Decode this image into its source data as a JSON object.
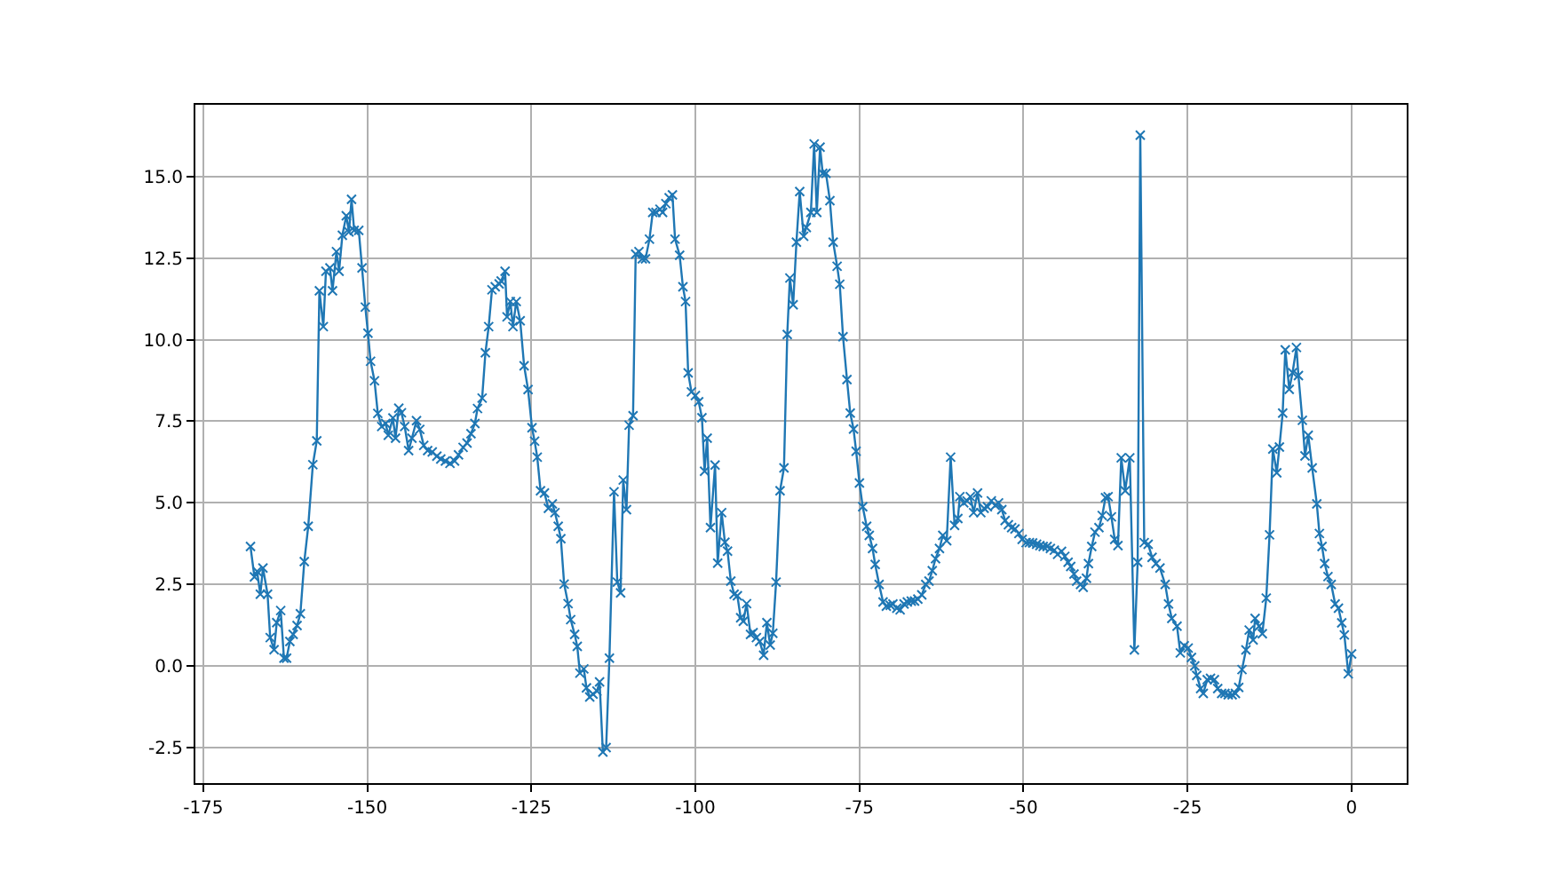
{
  "chart_data": {
    "type": "line",
    "x": [
      -167.8,
      -167.2,
      -166.8,
      -166.3,
      -165.9,
      -165.2,
      -164.8,
      -164.2,
      -163.8,
      -163.2,
      -162.7,
      -162.3,
      -161.8,
      -161.3,
      -160.7,
      -160.2,
      -159.6,
      -159.0,
      -158.3,
      -157.7,
      -157.3,
      -156.7,
      -156.3,
      -155.7,
      -155.3,
      -154.7,
      -154.3,
      -153.8,
      -153.2,
      -152.8,
      -152.4,
      -152.0,
      -151.3,
      -150.8,
      -150.3,
      -149.9,
      -149.5,
      -148.9,
      -148.4,
      -147.8,
      -147.2,
      -146.8,
      -146.1,
      -145.7,
      -145.2,
      -144.8,
      -144.3,
      -143.7,
      -143.2,
      -142.5,
      -142.0,
      -141.4,
      -140.8,
      -140.1,
      -139.4,
      -138.8,
      -138.1,
      -137.4,
      -136.7,
      -136.1,
      -135.4,
      -134.8,
      -134.2,
      -133.6,
      -133.2,
      -132.5,
      -132.0,
      -131.5,
      -131.0,
      -130.5,
      -129.9,
      -129.6,
      -129.0,
      -128.7,
      -128.2,
      -127.8,
      -127.3,
      -126.7,
      -126.1,
      -125.5,
      -124.9,
      -124.5,
      -124.1,
      -123.6,
      -123.0,
      -122.4,
      -121.8,
      -121.4,
      -120.9,
      -120.5,
      -120.0,
      -119.4,
      -119.0,
      -118.4,
      -118.0,
      -117.6,
      -117.0,
      -116.6,
      -116.1,
      -115.6,
      -115.0,
      -114.6,
      -114.1,
      -113.6,
      -113.1,
      -112.4,
      -111.9,
      -111.4,
      -111.0,
      -110.5,
      -110.1,
      -109.5,
      -109.1,
      -108.6,
      -108.1,
      -107.6,
      -107.0,
      -106.5,
      -106.0,
      -105.4,
      -105.0,
      -104.5,
      -104.0,
      -103.5,
      -103.1,
      -102.4,
      -101.9,
      -101.5,
      -101.1,
      -100.6,
      -100.0,
      -99.5,
      -99.0,
      -98.6,
      -98.2,
      -97.7,
      -97.0,
      -96.6,
      -96.0,
      -95.5,
      -95.1,
      -94.6,
      -94.1,
      -93.6,
      -93.1,
      -92.7,
      -92.2,
      -91.6,
      -91.2,
      -90.7,
      -90.2,
      -89.6,
      -89.1,
      -88.6,
      -88.2,
      -87.7,
      -87.1,
      -86.5,
      -86.0,
      -85.6,
      -85.1,
      -84.6,
      -84.1,
      -83.5,
      -83.1,
      -82.4,
      -81.9,
      -81.5,
      -81.0,
      -80.6,
      -80.1,
      -79.5,
      -79.0,
      -78.4,
      -78.0,
      -77.5,
      -76.9,
      -76.4,
      -75.9,
      -75.5,
      -75.0,
      -74.5,
      -73.9,
      -73.5,
      -73.0,
      -72.6,
      -72.0,
      -71.4,
      -70.9,
      -70.3,
      -69.9,
      -69.3,
      -68.8,
      -68.2,
      -67.7,
      -67.1,
      -66.6,
      -66.1,
      -65.5,
      -64.9,
      -64.4,
      -63.9,
      -63.4,
      -62.8,
      -62.3,
      -61.7,
      -61.1,
      -60.5,
      -60.0,
      -59.7,
      -59.1,
      -58.6,
      -58.1,
      -57.6,
      -57.0,
      -56.5,
      -56.0,
      -55.5,
      -54.9,
      -54.3,
      -53.8,
      -53.3,
      -52.8,
      -52.3,
      -51.8,
      -51.3,
      -50.7,
      -50.2,
      -49.6,
      -49.1,
      -48.6,
      -48.0,
      -47.5,
      -47.0,
      -46.4,
      -45.9,
      -45.3,
      -44.8,
      -44.2,
      -43.7,
      -43.2,
      -42.8,
      -42.3,
      -41.9,
      -41.3,
      -40.9,
      -40.4,
      -40.1,
      -39.6,
      -39.1,
      -38.5,
      -38.0,
      -37.5,
      -37.1,
      -36.6,
      -36.1,
      -35.6,
      -35.1,
      -34.5,
      -33.8,
      -33.1,
      -32.6,
      -32.2,
      -31.6,
      -31.0,
      -30.4,
      -29.8,
      -29.2,
      -28.4,
      -27.9,
      -27.4,
      -26.6,
      -26.1,
      -25.5,
      -24.9,
      -24.4,
      -23.9,
      -23.6,
      -23.0,
      -22.6,
      -22.0,
      -21.5,
      -20.9,
      -20.4,
      -19.8,
      -19.3,
      -18.8,
      -18.2,
      -17.7,
      -17.2,
      -16.7,
      -16.1,
      -15.6,
      -15.0,
      -14.7,
      -14.1,
      -13.6,
      -13.0,
      -12.5,
      -12.0,
      -11.4,
      -11.0,
      -10.5,
      -10.1,
      -9.5,
      -9.0,
      -8.4,
      -8.1,
      -7.5,
      -7.1,
      -6.6,
      -6.0,
      -5.3,
      -4.9,
      -4.5,
      -4.1,
      -3.6,
      -3.1,
      -2.5,
      -2.0,
      -1.5,
      -1.1,
      -0.5,
      0.0
    ],
    "series": [
      {
        "color": "#1f77b4",
        "values": [
          3.66,
          2.73,
          2.9,
          2.2,
          3.0,
          2.2,
          0.87,
          0.5,
          1.33,
          1.7,
          0.24,
          0.24,
          0.75,
          0.97,
          1.24,
          1.6,
          3.2,
          4.28,
          6.17,
          6.9,
          11.5,
          10.4,
          12.1,
          12.2,
          11.5,
          12.7,
          12.1,
          13.2,
          13.8,
          13.3,
          14.3,
          13.35,
          13.35,
          12.2,
          11.0,
          10.2,
          9.34,
          8.74,
          7.74,
          7.34,
          7.43,
          7.07,
          7.6,
          6.98,
          7.9,
          7.76,
          7.34,
          6.6,
          6.98,
          7.52,
          7.25,
          6.76,
          6.6,
          6.56,
          6.43,
          6.34,
          6.28,
          6.21,
          6.28,
          6.47,
          6.7,
          6.83,
          7.12,
          7.43,
          7.89,
          8.21,
          9.6,
          10.4,
          11.53,
          11.62,
          11.71,
          11.8,
          12.1,
          10.7,
          11.17,
          10.4,
          11.17,
          10.58,
          9.2,
          8.47,
          7.3,
          6.89,
          6.4,
          5.37,
          5.3,
          4.83,
          4.97,
          4.7,
          4.28,
          3.9,
          2.51,
          1.91,
          1.42,
          0.97,
          0.6,
          -0.22,
          -0.09,
          -0.67,
          -0.95,
          -0.86,
          -0.77,
          -0.49,
          -2.64,
          -2.5,
          0.24,
          5.34,
          2.57,
          2.24,
          5.7,
          4.79,
          7.38,
          7.67,
          12.62,
          12.7,
          12.48,
          12.48,
          13.08,
          13.9,
          13.9,
          14.0,
          13.9,
          14.17,
          14.35,
          14.44,
          13.08,
          12.59,
          11.62,
          11.17,
          8.98,
          8.4,
          8.29,
          8.1,
          7.61,
          5.97,
          6.98,
          4.24,
          6.16,
          3.15,
          4.7,
          3.79,
          3.52,
          2.6,
          2.2,
          2.15,
          1.48,
          1.37,
          1.91,
          0.97,
          1.02,
          0.87,
          0.75,
          0.33,
          1.33,
          0.64,
          1.0,
          2.57,
          5.37,
          6.07,
          10.16,
          11.89,
          11.07,
          12.99,
          14.54,
          13.17,
          13.44,
          13.9,
          16.0,
          13.9,
          15.9,
          15.1,
          15.1,
          14.26,
          12.99,
          12.25,
          11.7,
          10.09,
          8.78,
          7.75,
          7.26,
          6.58,
          5.61,
          4.88,
          4.28,
          4.0,
          3.6,
          3.11,
          2.5,
          1.96,
          1.83,
          1.86,
          1.9,
          1.77,
          1.72,
          1.9,
          1.96,
          1.99,
          1.99,
          2.05,
          2.18,
          2.5,
          2.6,
          2.92,
          3.29,
          3.6,
          4.0,
          3.84,
          6.4,
          4.31,
          4.52,
          5.19,
          5.0,
          5.06,
          5.19,
          4.7,
          5.3,
          4.7,
          4.83,
          4.88,
          5.06,
          4.92,
          5.0,
          4.79,
          4.46,
          4.33,
          4.24,
          4.2,
          4.06,
          3.88,
          3.78,
          3.78,
          3.77,
          3.73,
          3.69,
          3.66,
          3.66,
          3.6,
          3.55,
          3.42,
          3.51,
          3.36,
          3.18,
          3.05,
          2.82,
          2.6,
          2.5,
          2.41,
          2.69,
          3.14,
          3.66,
          4.1,
          4.24,
          4.61,
          5.16,
          5.19,
          4.57,
          3.88,
          3.69,
          6.38,
          5.37,
          6.38,
          0.49,
          3.18,
          16.27,
          3.78,
          3.73,
          3.33,
          3.14,
          3.0,
          2.5,
          1.9,
          1.46,
          1.22,
          0.4,
          0.62,
          0.55,
          0.26,
          0.0,
          -0.29,
          -0.69,
          -0.84,
          -0.42,
          -0.38,
          -0.42,
          -0.69,
          -0.84,
          -0.84,
          -0.88,
          -0.88,
          -0.84,
          -0.66,
          -0.11,
          0.49,
          1.1,
          0.8,
          1.46,
          1.22,
          0.99,
          2.08,
          4.02,
          6.65,
          5.92,
          6.71,
          7.75,
          9.69,
          8.48,
          8.99,
          9.76,
          8.9,
          7.53,
          6.44,
          7.07,
          6.07,
          4.97,
          4.06,
          3.66,
          3.14,
          2.74,
          2.5,
          1.9,
          1.77,
          1.32,
          0.95,
          -0.24,
          0.37
        ]
      }
    ],
    "xlim": [
      -176.2,
      8.4
    ],
    "ylim": [
      -3.59,
      17.2
    ],
    "xticks": [
      -175,
      -150,
      -125,
      -100,
      -75,
      -50,
      -25,
      0
    ],
    "yticks": [
      -2.5,
      {
        "value": 0,
        "label": "0.0"
      },
      2.5,
      {
        "value": 5,
        "label": "5.0"
      },
      7.5,
      {
        "value": 10,
        "label": "10.0"
      },
      12.5,
      {
        "value": 15,
        "label": "15.0"
      }
    ],
    "grid": true,
    "marker": "cross",
    "line_style": "solid"
  }
}
